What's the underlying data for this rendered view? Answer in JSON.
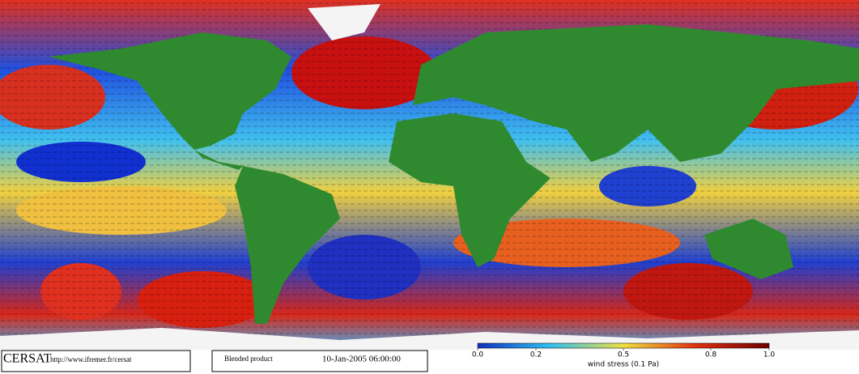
{
  "footer": {
    "logo": "CERSAT",
    "url": "http://www.ifremer.fr/cersat",
    "product": "Blended product",
    "timestamp": "10-Jan-2005 06:00:00"
  },
  "colorbar": {
    "range": [
      0,
      1
    ],
    "ticks": [
      {
        "value": 0,
        "label": "0.0"
      },
      {
        "value": 0.2,
        "label": "0.2"
      },
      {
        "value": 0.5,
        "label": "0.5"
      },
      {
        "value": 0.8,
        "label": "0.8"
      },
      {
        "value": 1,
        "label": "1.0"
      }
    ],
    "label": "wind stress (0.1 Pa)"
  }
}
